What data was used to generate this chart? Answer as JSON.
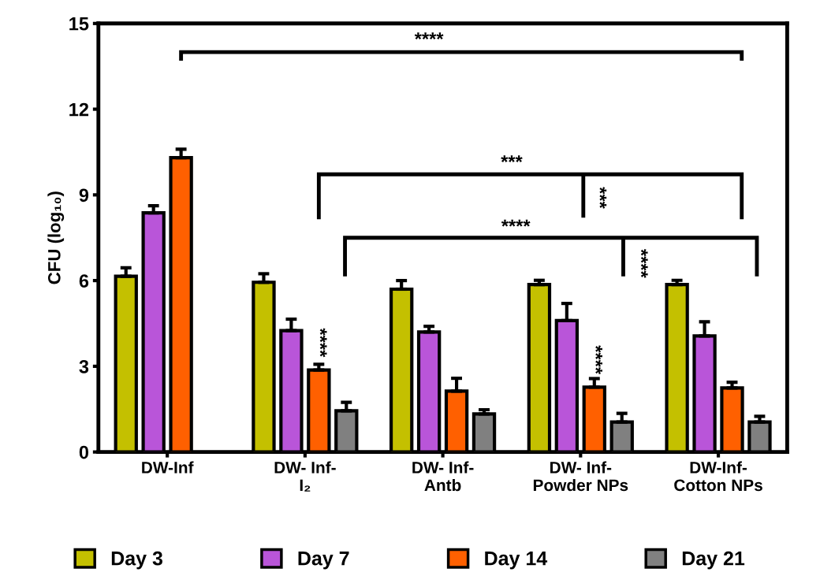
{
  "chart_data": {
    "type": "bar",
    "ylabel": "CFU (log₁₀)",
    "categories": [
      "DW-Inf",
      "DW- Inf-\nI₂",
      "DW- Inf-\nAntb",
      "DW- Inf-\nPowder NPs",
      "DW-Inf-\nCotton NPs"
    ],
    "series": [
      {
        "name": "Day 3",
        "color": "#c4c000",
        "values": [
          6.15,
          5.94,
          5.7,
          5.86,
          5.86
        ],
        "errors": [
          [
            6.15,
            6.45
          ],
          [
            5.94,
            6.24
          ],
          [
            5.7,
            6.0
          ],
          [
            5.86,
            6.01
          ],
          [
            5.86,
            6.01
          ]
        ]
      },
      {
        "name": "Day 7",
        "color": "#b955d9",
        "values": [
          8.37,
          4.25,
          4.2,
          4.6,
          4.06
        ],
        "errors": [
          [
            8.37,
            8.62
          ],
          [
            4.25,
            4.65
          ],
          [
            4.2,
            4.4
          ],
          [
            4.6,
            5.2
          ],
          [
            4.06,
            4.56
          ]
        ]
      },
      {
        "name": "Day 14",
        "color": "#ff6000",
        "values": [
          10.3,
          2.87,
          2.13,
          2.27,
          2.24
        ],
        "errors": [
          [
            10.3,
            10.6
          ],
          [
            2.87,
            3.07
          ],
          [
            2.13,
            2.58
          ],
          [
            2.27,
            2.57
          ],
          [
            2.24,
            2.44
          ]
        ]
      },
      {
        "name": "Day 21",
        "color": "#808080",
        "values": [
          null,
          1.44,
          1.33,
          1.05,
          1.05
        ],
        "errors": [
          null,
          [
            1.44,
            1.74
          ],
          [
            1.33,
            1.48
          ],
          [
            1.05,
            1.35
          ],
          [
            1.05,
            1.25
          ]
        ]
      }
    ],
    "ylim": [
      0,
      15
    ],
    "yticks": [
      0,
      3,
      6,
      9,
      12,
      15
    ],
    "grid": false,
    "legend": "bottom",
    "annotations": [
      "****",
      "***",
      "***",
      "****",
      "****",
      {
        "text": "****",
        "x": "DW- Inf-\nI₂",
        "y": 2.87
      },
      {
        "text": "****",
        "x": "DW- Inf-\nPowder NPs",
        "y": 2.27
      }
    ]
  }
}
